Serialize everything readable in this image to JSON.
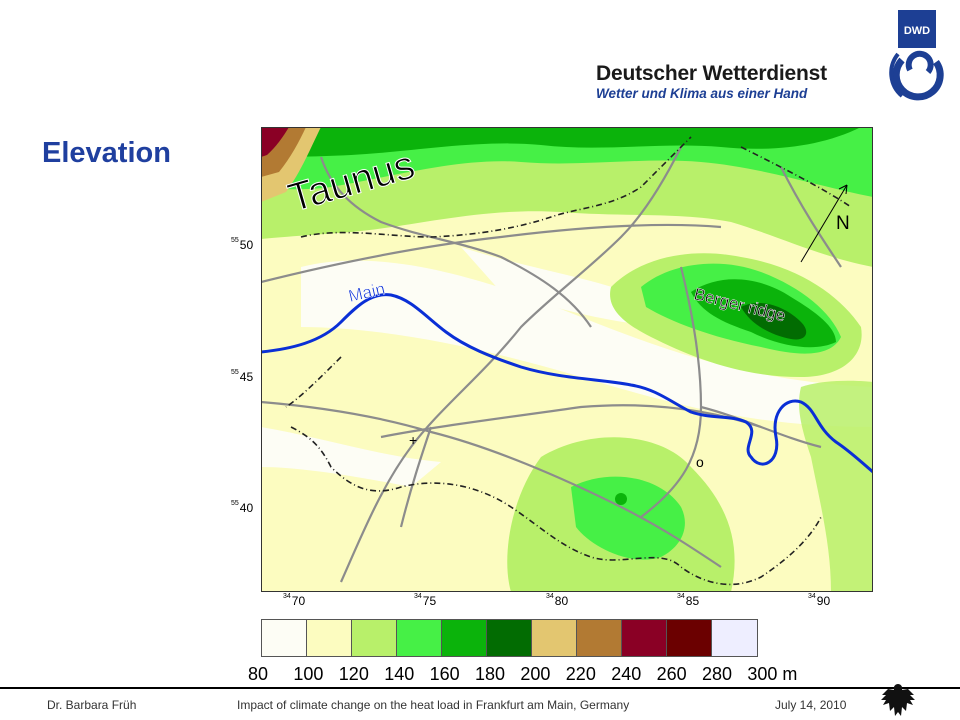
{
  "header": {
    "logo_badge": "DWD",
    "logo_title": "Deutscher Wetterdienst",
    "logo_subtitle": "Wetter und Klima aus einer Hand"
  },
  "slide_title": "Elevation",
  "map": {
    "labels": {
      "taunus": "Taunus",
      "main": "Main",
      "north": "N",
      "berger_ridge": "Berger ridge",
      "plus_marker": "+",
      "o_marker": "o"
    },
    "y_ticks": [
      {
        "prefix": "55",
        "value": "50"
      },
      {
        "prefix": "55",
        "value": "45"
      },
      {
        "prefix": "55",
        "value": "40"
      }
    ],
    "x_ticks": [
      {
        "prefix": "34",
        "value": "70"
      },
      {
        "prefix": "34",
        "value": "75"
      },
      {
        "prefix": "34",
        "value": "80"
      },
      {
        "prefix": "34",
        "value": "85"
      },
      {
        "prefix": "34",
        "value": "90"
      }
    ],
    "colors": {
      "river": "#0a2fd6",
      "roads": "#8c8c8c",
      "border": "#222222"
    }
  },
  "legend": {
    "colors": [
      "#fdfdf5",
      "#fcfcc0",
      "#b8f06a",
      "#46f046",
      "#0bb30b",
      "#026c02",
      "#e3c670",
      "#b27a33",
      "#8a0025",
      "#6b0000",
      "#eeeeff"
    ],
    "labels": [
      "80",
      "100",
      "120",
      "140",
      "160",
      "180",
      "200",
      "220",
      "240",
      "260",
      "280",
      "300 m"
    ]
  },
  "footer": {
    "author": "Dr. Barbara Früh",
    "talk_title": "Impact of climate change on the heat load in Frankfurt am Main, Germany",
    "date": "July 14, 2010"
  }
}
